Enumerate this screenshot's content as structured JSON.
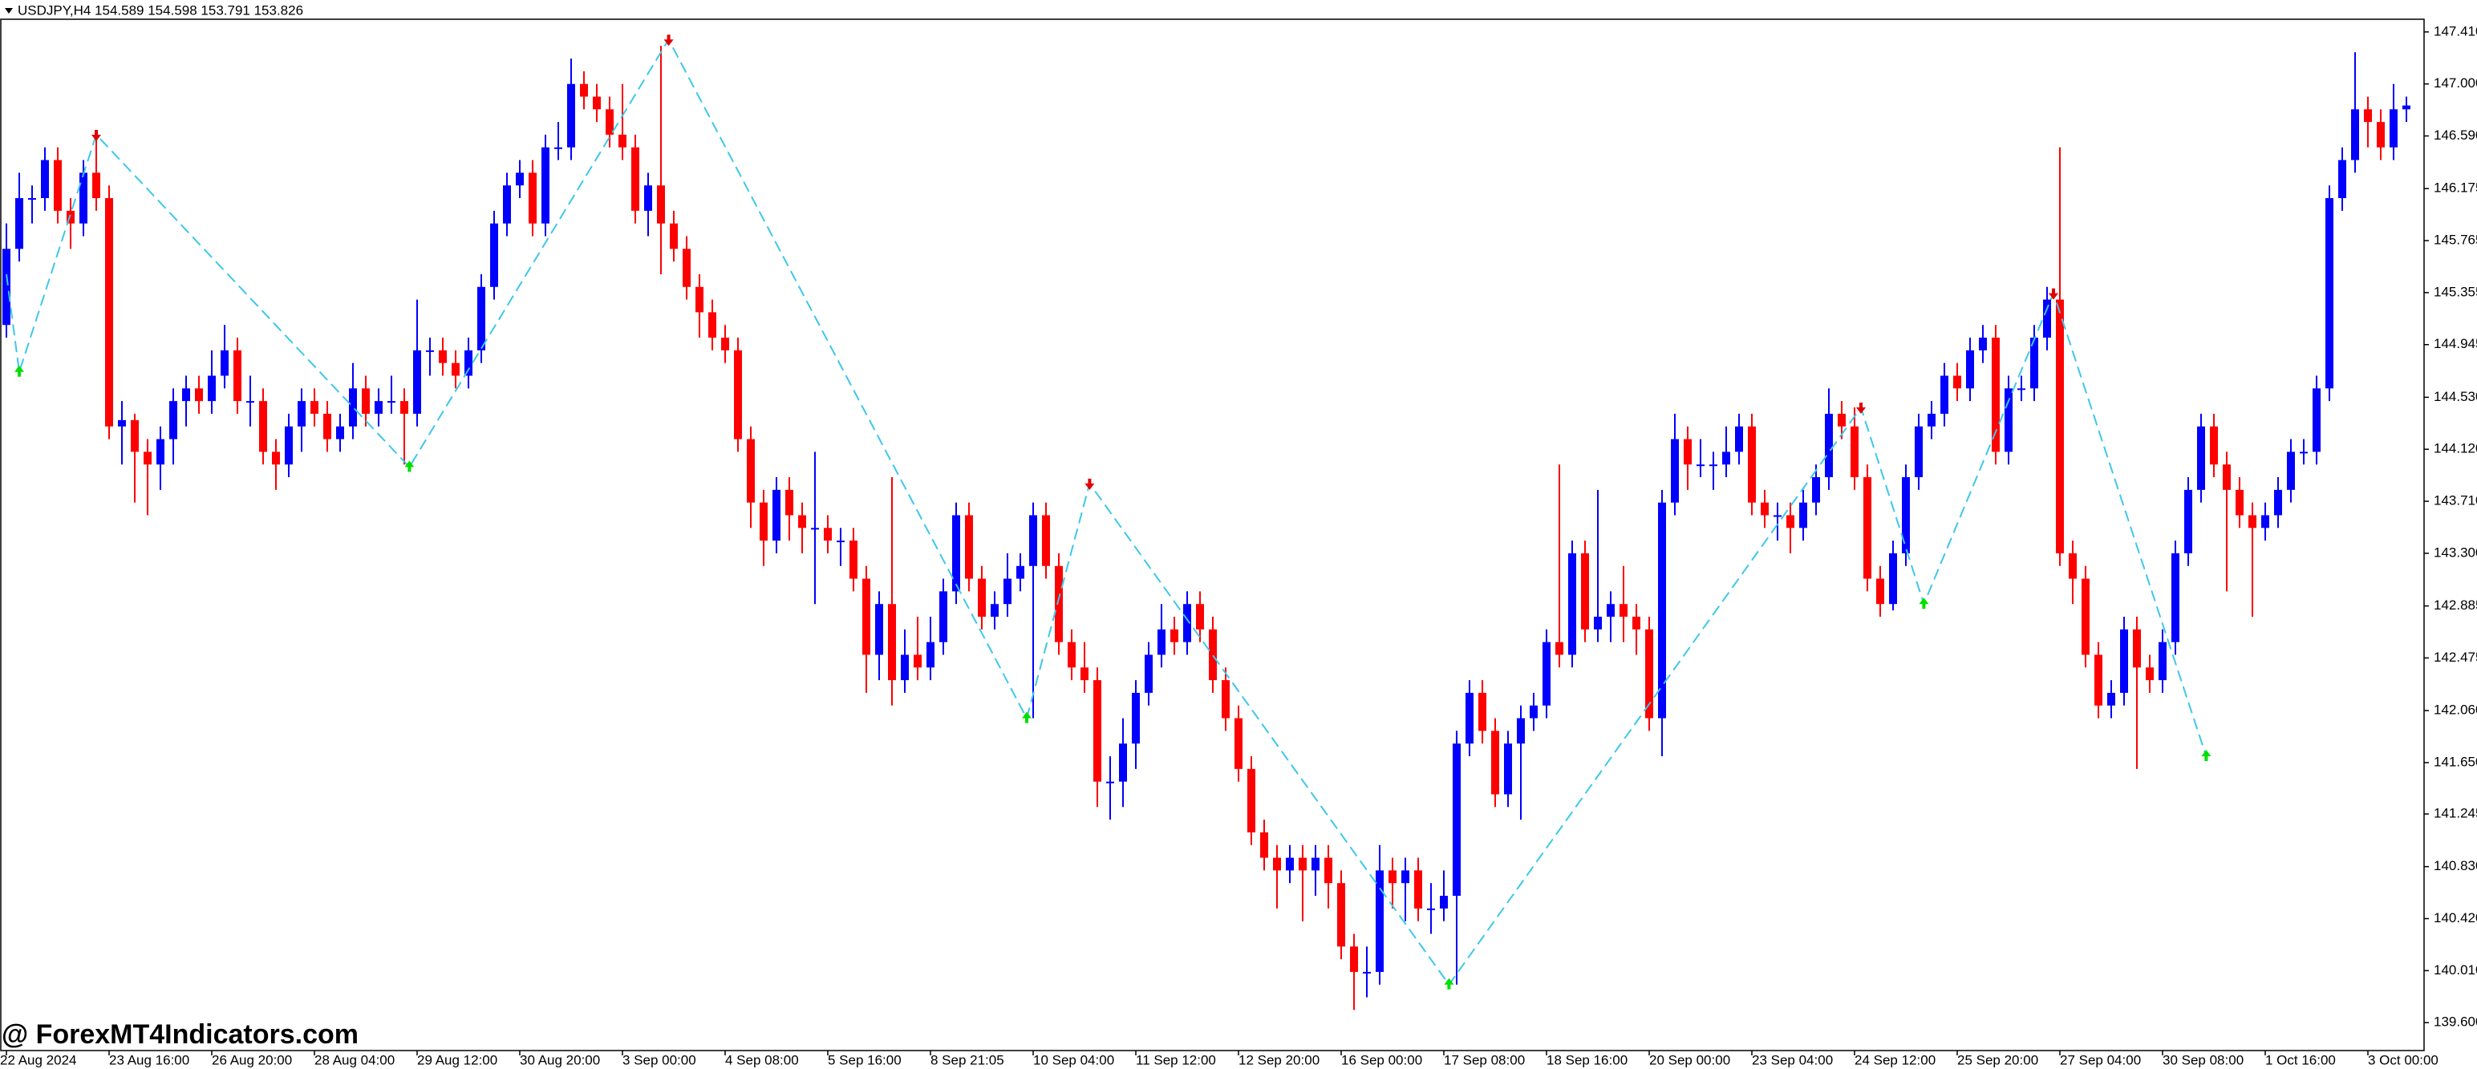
{
  "chart_data": {
    "type": "candlestick",
    "header": "USDJPY,H4  154.589 154.598 153.791 153.826",
    "watermark": "@ ForexMT4Indicators.com",
    "up_color": "#0000ff",
    "down_color": "#ff0000",
    "zigzag_color": "#3cc8ea",
    "arrow_up_color": "#00e000",
    "arrow_down_color": "#e00000",
    "ylim": [
      139.38,
      147.51
    ],
    "yticks": [
      {
        "value": 147.41,
        "label": "147.410"
      },
      {
        "value": 147,
        "label": "147.000"
      },
      {
        "value": 146.59,
        "label": "146.590"
      },
      146.175,
      145.765,
      145.355,
      144.945,
      {
        "value": 144.53,
        "label": "144.530"
      },
      {
        "value": 144.12,
        "label": "144.120"
      },
      {
        "value": 143.71,
        "label": "143.710"
      },
      {
        "value": 143.3,
        "label": "143.300"
      },
      142.885,
      142.475,
      {
        "value": 142.06,
        "label": "142.060"
      },
      {
        "value": 141.65,
        "label": "141.650"
      },
      141.245,
      {
        "value": 140.83,
        "label": "140.830"
      },
      {
        "value": 140.42,
        "label": "140.420"
      },
      {
        "value": 140.01,
        "label": "140.010"
      },
      {
        "value": 139.6,
        "label": "139.600"
      }
    ],
    "categories": [
      "22 Aug 2024",
      null,
      null,
      null,
      null,
      null,
      null,
      null,
      "23 Aug 16:00",
      null,
      null,
      null,
      null,
      null,
      null,
      null,
      "26 Aug 20:00",
      null,
      null,
      null,
      null,
      null,
      null,
      null,
      "28 Aug 04:00",
      null,
      null,
      null,
      null,
      null,
      null,
      null,
      "29 Aug 12:00",
      null,
      null,
      null,
      null,
      null,
      null,
      null,
      "30 Aug 20:00",
      null,
      null,
      null,
      null,
      null,
      null,
      null,
      "3 Sep 00:00",
      null,
      null,
      null,
      null,
      null,
      null,
      null,
      "4 Sep 08:00",
      null,
      null,
      null,
      null,
      null,
      null,
      null,
      "5 Sep 16:00",
      null,
      null,
      null,
      null,
      null,
      null,
      null,
      "8 Sep 21:05",
      null,
      null,
      null,
      null,
      null,
      null,
      null,
      "10 Sep 04:00",
      null,
      null,
      null,
      null,
      null,
      null,
      null,
      "11 Sep 12:00",
      null,
      null,
      null,
      null,
      null,
      null,
      null,
      "12 Sep 20:00",
      null,
      null,
      null,
      null,
      null,
      null,
      null,
      "16 Sep 00:00",
      null,
      null,
      null,
      null,
      null,
      null,
      null,
      "17 Sep 08:00",
      null,
      null,
      null,
      null,
      null,
      null,
      null,
      "18 Sep 16:00",
      null,
      null,
      null,
      null,
      null,
      null,
      null,
      "20 Sep 00:00",
      null,
      null,
      null,
      null,
      null,
      null,
      null,
      "23 Sep 04:00",
      null,
      null,
      null,
      null,
      null,
      null,
      null,
      "24 Sep 12:00",
      null,
      null,
      null,
      null,
      null,
      null,
      null,
      "25 Sep 20:00",
      null,
      null,
      null,
      null,
      null,
      null,
      null,
      "27 Sep 04:00",
      null,
      null,
      null,
      null,
      null,
      null,
      null,
      "30 Sep 08:00",
      null,
      null,
      null,
      null,
      null,
      null,
      null,
      "1 Oct 16:00",
      null,
      null,
      null,
      null,
      null,
      null,
      null,
      "3 Oct 00:00",
      null,
      null,
      null
    ],
    "candles": [
      [
        145.1,
        145.9,
        145.0,
        145.7
      ],
      [
        145.7,
        146.3,
        145.6,
        146.1
      ],
      [
        146.1,
        146.2,
        145.9,
        146.1
      ],
      [
        146.1,
        146.5,
        146.0,
        146.4
      ],
      [
        146.4,
        146.5,
        145.9,
        146.0
      ],
      [
        146.0,
        146.1,
        145.7,
        145.9
      ],
      [
        145.9,
        146.4,
        145.8,
        146.3
      ],
      [
        146.3,
        146.6,
        146.0,
        146.1
      ],
      [
        146.1,
        146.2,
        144.2,
        144.3
      ],
      [
        144.3,
        144.5,
        144.0,
        144.35
      ],
      [
        144.35,
        144.4,
        143.7,
        144.1
      ],
      [
        144.1,
        144.2,
        143.6,
        144.0
      ],
      [
        144.0,
        144.3,
        143.8,
        144.2
      ],
      [
        144.2,
        144.6,
        144.0,
        144.5
      ],
      [
        144.5,
        144.7,
        144.3,
        144.6
      ],
      [
        144.6,
        144.7,
        144.4,
        144.5
      ],
      [
        144.5,
        144.9,
        144.4,
        144.7
      ],
      [
        144.7,
        145.1,
        144.6,
        144.9
      ],
      [
        144.9,
        145.0,
        144.4,
        144.5
      ],
      [
        144.5,
        144.7,
        144.3,
        144.5
      ],
      [
        144.5,
        144.6,
        144.0,
        144.1
      ],
      [
        144.1,
        144.2,
        143.8,
        144.0
      ],
      [
        144.0,
        144.4,
        143.9,
        144.3
      ],
      [
        144.3,
        144.6,
        144.1,
        144.5
      ],
      [
        144.5,
        144.6,
        144.3,
        144.4
      ],
      [
        144.4,
        144.5,
        144.1,
        144.2
      ],
      [
        144.2,
        144.4,
        144.1,
        144.3
      ],
      [
        144.3,
        144.8,
        144.2,
        144.6
      ],
      [
        144.6,
        144.7,
        144.3,
        144.4
      ],
      [
        144.4,
        144.6,
        144.3,
        144.5
      ],
      [
        144.5,
        144.7,
        144.4,
        144.5
      ],
      [
        144.5,
        144.6,
        144.0,
        144.4
      ],
      [
        144.4,
        145.3,
        144.3,
        144.9
      ],
      [
        144.9,
        145.0,
        144.7,
        144.9
      ],
      [
        144.9,
        145.0,
        144.7,
        144.8
      ],
      [
        144.8,
        144.9,
        144.6,
        144.7
      ],
      [
        144.7,
        145.0,
        144.6,
        144.9
      ],
      [
        144.9,
        145.5,
        144.8,
        145.4
      ],
      [
        145.4,
        146.0,
        145.3,
        145.9
      ],
      [
        145.9,
        146.3,
        145.8,
        146.2
      ],
      [
        146.2,
        146.4,
        146.1,
        146.3
      ],
      [
        146.3,
        146.4,
        145.8,
        145.9
      ],
      [
        145.9,
        146.6,
        145.8,
        146.5
      ],
      [
        146.5,
        146.7,
        146.4,
        146.5
      ],
      [
        146.5,
        147.2,
        146.4,
        147.0
      ],
      [
        147.0,
        147.1,
        146.8,
        146.9
      ],
      [
        146.9,
        147.0,
        146.7,
        146.8
      ],
      [
        146.8,
        146.9,
        146.5,
        146.6
      ],
      [
        146.6,
        147.0,
        146.4,
        146.5
      ],
      [
        146.5,
        146.6,
        145.9,
        146.0
      ],
      [
        146.0,
        146.3,
        145.8,
        146.2
      ],
      [
        146.2,
        147.3,
        145.5,
        145.9
      ],
      [
        145.9,
        146.0,
        145.6,
        145.7
      ],
      [
        145.7,
        145.8,
        145.3,
        145.4
      ],
      [
        145.4,
        145.5,
        145.0,
        145.2
      ],
      [
        145.2,
        145.3,
        144.9,
        145.0
      ],
      [
        145.0,
        145.1,
        144.8,
        144.9
      ],
      [
        144.9,
        145.0,
        144.1,
        144.2
      ],
      [
        144.2,
        144.3,
        143.5,
        143.7
      ],
      [
        143.7,
        143.8,
        143.2,
        143.4
      ],
      [
        143.4,
        143.9,
        143.3,
        143.8
      ],
      [
        143.8,
        143.9,
        143.4,
        143.6
      ],
      [
        143.6,
        143.7,
        143.3,
        143.5
      ],
      [
        143.5,
        144.1,
        142.9,
        143.5
      ],
      [
        143.5,
        143.6,
        143.3,
        143.4
      ],
      [
        143.4,
        143.5,
        143.2,
        143.4
      ],
      [
        143.4,
        143.5,
        143.0,
        143.1
      ],
      [
        143.1,
        143.2,
        142.2,
        142.5
      ],
      [
        142.5,
        143.0,
        142.3,
        142.9
      ],
      [
        142.9,
        143.9,
        142.1,
        142.3
      ],
      [
        142.3,
        142.7,
        142.2,
        142.5
      ],
      [
        142.5,
        142.8,
        142.3,
        142.4
      ],
      [
        142.4,
        142.8,
        142.3,
        142.6
      ],
      [
        142.6,
        143.1,
        142.5,
        143.0
      ],
      [
        143.0,
        143.7,
        142.9,
        143.6
      ],
      [
        143.6,
        143.7,
        143.0,
        143.1
      ],
      [
        143.1,
        143.2,
        142.7,
        142.8
      ],
      [
        142.8,
        143.0,
        142.7,
        142.9
      ],
      [
        142.9,
        143.3,
        142.8,
        143.1
      ],
      [
        143.1,
        143.3,
        143.0,
        143.2
      ],
      [
        143.2,
        143.7,
        142.0,
        143.6
      ],
      [
        143.6,
        143.7,
        143.1,
        143.2
      ],
      [
        143.2,
        143.3,
        142.5,
        142.6
      ],
      [
        142.6,
        142.7,
        142.3,
        142.4
      ],
      [
        142.4,
        142.6,
        142.2,
        142.3
      ],
      [
        142.3,
        142.4,
        141.3,
        141.5
      ],
      [
        141.5,
        141.7,
        141.2,
        141.5
      ],
      [
        141.5,
        142.0,
        141.3,
        141.8
      ],
      [
        141.8,
        142.3,
        141.6,
        142.2
      ],
      [
        142.2,
        142.6,
        142.1,
        142.5
      ],
      [
        142.5,
        142.9,
        142.4,
        142.7
      ],
      [
        142.7,
        142.8,
        142.5,
        142.6
      ],
      [
        142.6,
        143.0,
        142.5,
        142.9
      ],
      [
        142.9,
        143.0,
        142.6,
        142.7
      ],
      [
        142.7,
        142.8,
        142.2,
        142.3
      ],
      [
        142.3,
        142.4,
        141.9,
        142.0
      ],
      [
        142.0,
        142.1,
        141.5,
        141.6
      ],
      [
        141.6,
        141.7,
        141.0,
        141.1
      ],
      [
        141.1,
        141.2,
        140.8,
        140.9
      ],
      [
        140.9,
        141.0,
        140.5,
        140.8
      ],
      [
        140.8,
        141.0,
        140.7,
        140.9
      ],
      [
        140.9,
        141.0,
        140.4,
        140.8
      ],
      [
        140.8,
        141.0,
        140.6,
        140.9
      ],
      [
        140.9,
        141.0,
        140.5,
        140.7
      ],
      [
        140.7,
        140.8,
        140.1,
        140.2
      ],
      [
        140.2,
        140.3,
        139.7,
        140.0
      ],
      [
        140.0,
        140.2,
        139.8,
        140.0
      ],
      [
        140.0,
        141.0,
        139.9,
        140.8
      ],
      [
        140.8,
        140.9,
        140.5,
        140.7
      ],
      [
        140.7,
        140.9,
        140.4,
        140.8
      ],
      [
        140.8,
        140.9,
        140.4,
        140.5
      ],
      [
        140.5,
        140.7,
        140.3,
        140.5
      ],
      [
        140.5,
        140.8,
        140.4,
        140.6
      ],
      [
        140.6,
        141.9,
        139.9,
        141.8
      ],
      [
        141.8,
        142.3,
        141.7,
        142.2
      ],
      [
        142.2,
        142.3,
        141.8,
        141.9
      ],
      [
        141.9,
        142.0,
        141.3,
        141.4
      ],
      [
        141.4,
        141.9,
        141.3,
        141.8
      ],
      [
        141.8,
        142.1,
        141.2,
        142.0
      ],
      [
        142.0,
        142.2,
        141.9,
        142.1
      ],
      [
        142.1,
        142.7,
        142.0,
        142.6
      ],
      [
        142.6,
        144.0,
        142.4,
        142.5
      ],
      [
        142.5,
        143.4,
        142.4,
        143.3
      ],
      [
        143.3,
        143.4,
        142.6,
        142.7
      ],
      [
        142.7,
        143.8,
        142.6,
        142.8
      ],
      [
        142.8,
        143.0,
        142.6,
        142.9
      ],
      [
        142.9,
        143.2,
        142.6,
        142.8
      ],
      [
        142.8,
        142.9,
        142.5,
        142.7
      ],
      [
        142.7,
        142.8,
        141.9,
        142.0
      ],
      [
        142.0,
        143.8,
        141.7,
        143.7
      ],
      [
        143.7,
        144.4,
        143.6,
        144.2
      ],
      [
        144.2,
        144.3,
        143.8,
        144.0
      ],
      [
        144.0,
        144.2,
        143.9,
        144.0
      ],
      [
        144.0,
        144.1,
        143.8,
        144.0
      ],
      [
        144.0,
        144.3,
        143.9,
        144.1
      ],
      [
        144.1,
        144.4,
        144.0,
        144.3
      ],
      [
        144.3,
        144.4,
        143.6,
        143.7
      ],
      [
        143.7,
        143.8,
        143.5,
        143.6
      ],
      [
        143.6,
        143.7,
        143.4,
        143.6
      ],
      [
        143.6,
        143.7,
        143.3,
        143.5
      ],
      [
        143.5,
        143.8,
        143.4,
        143.7
      ],
      [
        143.7,
        144.0,
        143.6,
        143.9
      ],
      [
        143.9,
        144.6,
        143.8,
        144.4
      ],
      [
        144.4,
        144.5,
        144.2,
        144.3
      ],
      [
        144.3,
        144.45,
        143.8,
        143.9
      ],
      [
        143.9,
        144.0,
        143.0,
        143.1
      ],
      [
        143.1,
        143.2,
        142.8,
        142.9
      ],
      [
        142.9,
        143.4,
        142.85,
        143.3
      ],
      [
        143.3,
        144.0,
        143.2,
        143.9
      ],
      [
        143.9,
        144.4,
        143.8,
        144.3
      ],
      [
        144.3,
        144.5,
        144.2,
        144.4
      ],
      [
        144.4,
        144.8,
        144.3,
        144.7
      ],
      [
        144.7,
        144.8,
        144.5,
        144.6
      ],
      [
        144.6,
        145.0,
        144.5,
        144.9
      ],
      [
        144.9,
        145.1,
        144.8,
        145.0
      ],
      [
        145.0,
        145.1,
        144.0,
        144.1
      ],
      [
        144.1,
        144.7,
        144.0,
        144.6
      ],
      [
        144.6,
        144.7,
        144.5,
        144.6
      ],
      [
        144.6,
        145.1,
        144.5,
        145.0
      ],
      [
        145.0,
        145.4,
        144.9,
        145.3
      ],
      [
        145.3,
        146.5,
        143.2,
        143.3
      ],
      [
        143.3,
        143.4,
        142.9,
        143.1
      ],
      [
        143.1,
        143.2,
        142.4,
        142.5
      ],
      [
        142.5,
        142.6,
        142.0,
        142.1
      ],
      [
        142.1,
        142.3,
        142.0,
        142.2
      ],
      [
        142.2,
        142.8,
        142.1,
        142.7
      ],
      [
        142.7,
        142.8,
        141.6,
        142.4
      ],
      [
        142.4,
        142.5,
        142.2,
        142.3
      ],
      [
        142.3,
        142.7,
        142.2,
        142.6
      ],
      [
        142.6,
        143.4,
        142.5,
        143.3
      ],
      [
        143.3,
        143.9,
        143.2,
        143.8
      ],
      [
        143.8,
        144.4,
        143.7,
        144.3
      ],
      [
        144.3,
        144.4,
        143.9,
        144.0
      ],
      [
        144.0,
        144.1,
        143.0,
        143.8
      ],
      [
        143.8,
        143.9,
        143.5,
        143.6
      ],
      [
        143.6,
        143.7,
        142.8,
        143.5
      ],
      [
        143.5,
        143.7,
        143.4,
        143.6
      ],
      [
        143.6,
        143.9,
        143.5,
        143.8
      ],
      [
        143.8,
        144.2,
        143.7,
        144.1
      ],
      [
        144.1,
        144.2,
        144.0,
        144.1
      ],
      [
        144.1,
        144.7,
        144.0,
        144.6
      ],
      [
        144.6,
        146.2,
        144.5,
        146.1
      ],
      [
        146.1,
        146.5,
        146.0,
        146.4
      ],
      [
        146.4,
        147.25,
        146.3,
        146.8
      ],
      [
        146.8,
        146.9,
        146.5,
        146.7
      ],
      [
        146.7,
        146.8,
        146.4,
        146.5
      ],
      [
        146.5,
        147.0,
        146.4,
        146.8
      ],
      [
        146.8,
        146.9,
        146.7,
        146.83
      ]
    ],
    "zigzag": {
      "x": [
        0,
        1,
        7,
        31.4,
        51.6,
        79.5,
        84.4,
        112.4,
        144.5,
        149.4,
        159.5,
        171.4
      ],
      "values": [
        145.5,
        144.73,
        146.6,
        143.98,
        147.35,
        142.0,
        143.85,
        139.9,
        144.45,
        142.9,
        145.35,
        141.7
      ]
    }
  }
}
